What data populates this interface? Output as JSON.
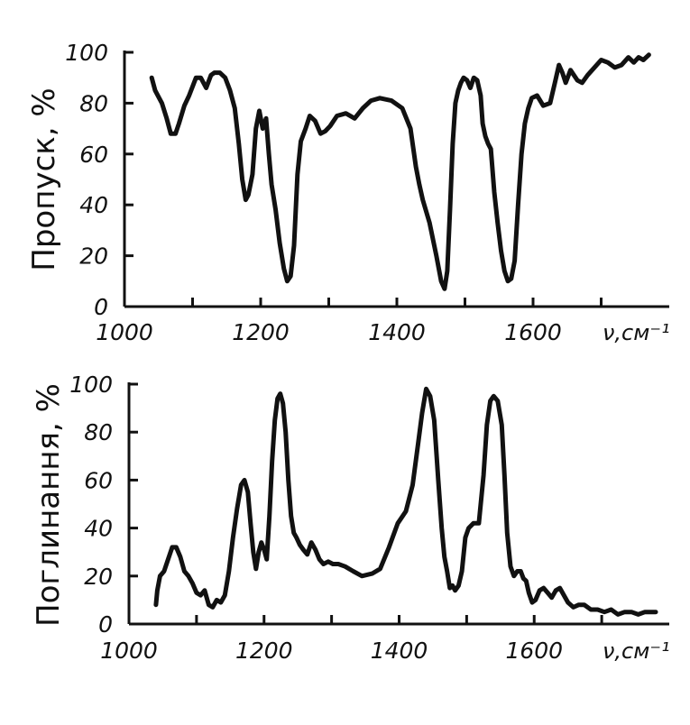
{
  "chart_data": [
    {
      "type": "line",
      "ylabel": "Пропуск, %",
      "xunit": "ν,см⁻¹",
      "xticks": [
        1000,
        1200,
        1400,
        1600
      ],
      "xticks_label": [
        "1000",
        "1200",
        "1400",
        "1600"
      ],
      "yticks": [
        0,
        20,
        40,
        60,
        80,
        100
      ],
      "yticks_label": [
        "0",
        "20",
        "40",
        "60",
        "80",
        "100"
      ],
      "xlim": [
        1000,
        1800
      ],
      "ylim": [
        0,
        100
      ],
      "grid": false,
      "series": [
        {
          "x": [
            1040,
            1045,
            1055,
            1062,
            1068,
            1075,
            1080,
            1088,
            1095,
            1105,
            1112,
            1120,
            1127,
            1132,
            1140,
            1148,
            1155,
            1162,
            1168,
            1173,
            1178,
            1182,
            1188,
            1193,
            1198,
            1203,
            1208,
            1212,
            1216,
            1222,
            1228,
            1234,
            1239,
            1244,
            1249,
            1254,
            1259,
            1266,
            1272,
            1280,
            1288,
            1295,
            1302,
            1312,
            1325,
            1338,
            1350,
            1362,
            1375,
            1392,
            1408,
            1420,
            1428,
            1433,
            1438,
            1448,
            1458,
            1465,
            1470,
            1474,
            1478,
            1482,
            1486,
            1490,
            1494,
            1498,
            1503,
            1508,
            1513,
            1518,
            1523,
            1526,
            1530,
            1534,
            1538,
            1543,
            1548,
            1553,
            1558,
            1563,
            1568,
            1573,
            1578,
            1583,
            1588,
            1593,
            1598,
            1606,
            1615,
            1625,
            1632,
            1638,
            1643,
            1648,
            1655,
            1665,
            1672,
            1680,
            1690,
            1700,
            1710,
            1720,
            1730,
            1740,
            1748,
            1755,
            1762,
            1770
          ],
          "y": [
            90,
            85,
            80,
            74,
            68,
            68,
            72,
            79,
            83,
            90,
            90,
            86,
            91,
            92,
            92,
            90,
            85,
            78,
            64,
            50,
            42,
            44,
            52,
            70,
            77,
            70,
            74,
            60,
            48,
            38,
            25,
            15,
            10,
            12,
            24,
            52,
            65,
            70,
            75,
            73,
            68,
            69,
            71,
            75,
            76,
            74,
            78,
            81,
            82,
            81,
            78,
            70,
            55,
            48,
            42,
            33,
            20,
            10,
            7,
            14,
            38,
            64,
            80,
            85,
            88,
            90,
            89,
            86,
            90,
            89,
            83,
            72,
            67,
            64,
            62,
            45,
            33,
            22,
            14,
            10,
            11,
            18,
            40,
            60,
            72,
            78,
            82,
            83,
            79,
            80,
            88,
            95,
            92,
            88,
            93,
            89,
            88,
            91,
            94,
            97,
            96,
            94,
            95,
            98,
            96,
            98,
            97,
            99
          ]
        }
      ]
    },
    {
      "type": "line",
      "ylabel": "Поглинання, %",
      "xunit": "ν,см⁻¹",
      "xticks": [
        1000,
        1200,
        1400,
        1600
      ],
      "xticks_label": [
        "1000",
        "1200",
        "1400",
        "1600"
      ],
      "yticks": [
        0,
        20,
        40,
        60,
        80,
        100
      ],
      "yticks_label": [
        "0",
        "20",
        "40",
        "60",
        "80",
        "100"
      ],
      "xlim": [
        1000,
        1800
      ],
      "ylim": [
        0,
        100
      ],
      "grid": false,
      "series": [
        {
          "x": [
            1040,
            1042,
            1046,
            1052,
            1058,
            1064,
            1070,
            1076,
            1082,
            1088,
            1094,
            1100,
            1106,
            1112,
            1118,
            1124,
            1130,
            1136,
            1142,
            1148,
            1154,
            1160,
            1166,
            1171,
            1176,
            1180,
            1184,
            1188,
            1192,
            1196,
            1200,
            1204,
            1208,
            1212,
            1216,
            1220,
            1224,
            1228,
            1232,
            1236,
            1240,
            1244,
            1248,
            1253,
            1258,
            1264,
            1270,
            1276,
            1282,
            1288,
            1295,
            1302,
            1310,
            1320,
            1332,
            1345,
            1360,
            1372,
            1385,
            1398,
            1410,
            1420,
            1428,
            1434,
            1440,
            1446,
            1452,
            1458,
            1463,
            1467,
            1471,
            1475,
            1479,
            1483,
            1488,
            1493,
            1498,
            1503,
            1510,
            1518,
            1525,
            1530,
            1535,
            1540,
            1546,
            1552,
            1556,
            1560,
            1565,
            1570,
            1575,
            1580,
            1584,
            1588,
            1592,
            1597,
            1602,
            1608,
            1614,
            1620,
            1626,
            1632,
            1638,
            1644,
            1650,
            1658,
            1666,
            1674,
            1684,
            1694,
            1704,
            1714,
            1724,
            1734,
            1744,
            1754,
            1764,
            1772,
            1780
          ],
          "y": [
            8,
            14,
            20,
            22,
            27,
            32,
            32,
            28,
            22,
            20,
            17,
            13,
            12,
            14,
            8,
            7,
            10,
            9,
            12,
            22,
            36,
            48,
            58,
            60,
            55,
            42,
            30,
            23,
            30,
            34,
            31,
            27,
            45,
            68,
            85,
            94,
            96,
            92,
            80,
            60,
            45,
            38,
            36,
            33,
            31,
            29,
            34,
            31,
            27,
            25,
            26,
            25,
            25,
            24,
            22,
            20,
            21,
            23,
            32,
            42,
            47,
            58,
            75,
            88,
            98,
            95,
            85,
            60,
            40,
            28,
            22,
            15,
            16,
            14,
            16,
            22,
            36,
            40,
            42,
            42,
            62,
            83,
            93,
            95,
            93,
            83,
            62,
            38,
            24,
            20,
            22,
            22,
            19,
            18,
            13,
            9,
            10,
            14,
            15,
            13,
            11,
            14,
            15,
            12,
            9,
            7,
            8,
            8,
            6,
            6,
            5,
            6,
            4,
            5,
            5,
            4,
            5,
            5,
            5
          ]
        }
      ]
    }
  ]
}
